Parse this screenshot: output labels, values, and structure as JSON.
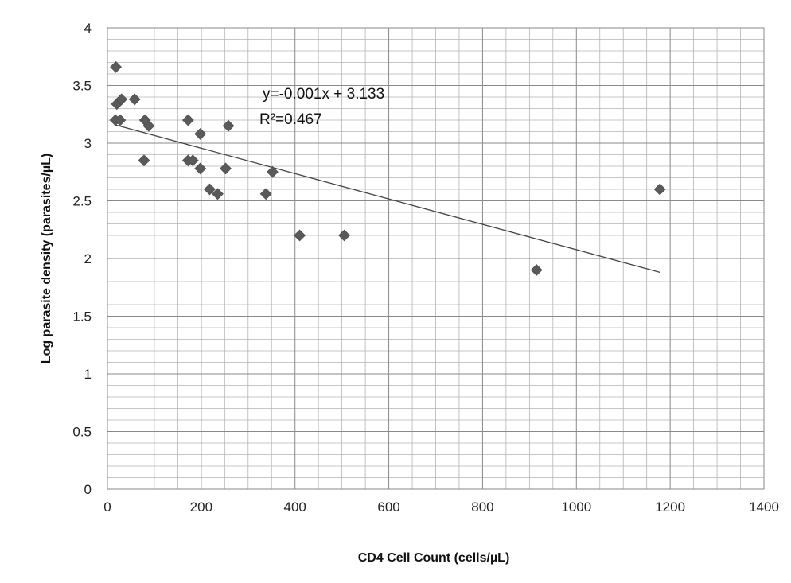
{
  "chart_data": {
    "type": "scatter",
    "xlabel": "CD4 Cell Count (cells/µL)",
    "ylabel": "Log parasite density (parasites/µL)",
    "xlim": [
      0,
      1400
    ],
    "ylim": [
      0,
      4
    ],
    "x_ticks": [
      "0",
      "200",
      "400",
      "600",
      "800",
      "1000",
      "1200",
      "1400"
    ],
    "y_ticks": [
      "0",
      "0.5",
      "1",
      "1.5",
      "2",
      "2.5",
      "3",
      "3.5",
      "4"
    ],
    "grid": true,
    "legend": "none",
    "marker": "diamond",
    "marker_color": "#5a5a5a",
    "line_color": "#444444",
    "series": [
      {
        "points": [
          {
            "x": 18,
            "y": 3.66
          },
          {
            "x": 20,
            "y": 3.34
          },
          {
            "x": 30,
            "y": 3.38
          },
          {
            "x": 58,
            "y": 3.38
          },
          {
            "x": 17,
            "y": 3.2
          },
          {
            "x": 27,
            "y": 3.2
          },
          {
            "x": 80,
            "y": 3.2
          },
          {
            "x": 88,
            "y": 3.15
          },
          {
            "x": 78,
            "y": 2.85
          },
          {
            "x": 172,
            "y": 3.2
          },
          {
            "x": 198,
            "y": 3.08
          },
          {
            "x": 172,
            "y": 2.85
          },
          {
            "x": 182,
            "y": 2.85
          },
          {
            "x": 198,
            "y": 2.78
          },
          {
            "x": 258,
            "y": 3.15
          },
          {
            "x": 252,
            "y": 2.78
          },
          {
            "x": 218,
            "y": 2.6
          },
          {
            "x": 235,
            "y": 2.56
          },
          {
            "x": 338,
            "y": 2.56
          },
          {
            "x": 352,
            "y": 2.75
          },
          {
            "x": 410,
            "y": 2.2
          },
          {
            "x": 505,
            "y": 2.2
          },
          {
            "x": 915,
            "y": 1.9
          },
          {
            "x": 1178,
            "y": 2.6
          }
        ]
      }
    ],
    "trendline": {
      "x": [
        15,
        1178
      ],
      "y": [
        3.16,
        1.88
      ]
    },
    "annotations": [
      "y=-0.001x + 3.133",
      "R²=0.467"
    ]
  }
}
